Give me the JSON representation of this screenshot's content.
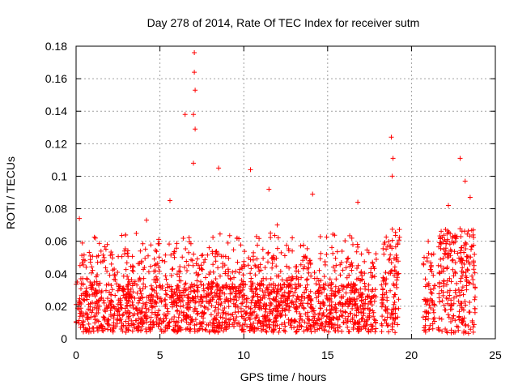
{
  "chart_data": {
    "type": "scatter",
    "title": "Day 278 of 2014, Rate Of TEC Index for receiver sutm",
    "xlabel": "GPS time / hours",
    "ylabel": "ROTI / TECUs",
    "xlim": [
      0,
      25
    ],
    "ylim": [
      0,
      0.18
    ],
    "xticks": [
      0,
      5,
      10,
      15,
      20,
      25
    ],
    "yticks": [
      0,
      0.02,
      0.04,
      0.06,
      0.08,
      0.1,
      0.12,
      0.14,
      0.16,
      0.18
    ],
    "ytick_labels": [
      "0",
      "0.02",
      "0.04",
      "0.06",
      "0.08",
      "0.1",
      "0.12",
      "0.14",
      "0.16",
      "0.18"
    ],
    "grid": true,
    "marker": "+",
    "color": "#ff0000",
    "data_coverage": [
      [
        0.0,
        17.9
      ],
      [
        18.2,
        19.3
      ],
      [
        20.7,
        21.4
      ],
      [
        21.6,
        23.8
      ]
    ],
    "notable_points": [
      {
        "x": 7.05,
        "y": 0.176
      },
      {
        "x": 7.05,
        "y": 0.164
      },
      {
        "x": 7.1,
        "y": 0.153
      },
      {
        "x": 6.5,
        "y": 0.138
      },
      {
        "x": 7.0,
        "y": 0.138
      },
      {
        "x": 7.1,
        "y": 0.129
      },
      {
        "x": 18.8,
        "y": 0.124
      },
      {
        "x": 7.0,
        "y": 0.108
      },
      {
        "x": 8.5,
        "y": 0.105
      },
      {
        "x": 10.4,
        "y": 0.104
      },
      {
        "x": 11.5,
        "y": 0.092
      },
      {
        "x": 14.1,
        "y": 0.089
      },
      {
        "x": 16.8,
        "y": 0.084
      },
      {
        "x": 18.9,
        "y": 0.111
      },
      {
        "x": 18.85,
        "y": 0.1
      },
      {
        "x": 21.0,
        "y": 0.06
      },
      {
        "x": 22.2,
        "y": 0.082
      },
      {
        "x": 22.9,
        "y": 0.111
      },
      {
        "x": 23.2,
        "y": 0.097
      },
      {
        "x": 23.5,
        "y": 0.087
      },
      {
        "x": 0.2,
        "y": 0.074
      },
      {
        "x": 4.2,
        "y": 0.073
      },
      {
        "x": 5.6,
        "y": 0.085
      },
      {
        "x": 9.6,
        "y": 0.062
      },
      {
        "x": 12.0,
        "y": 0.07
      }
    ]
  }
}
